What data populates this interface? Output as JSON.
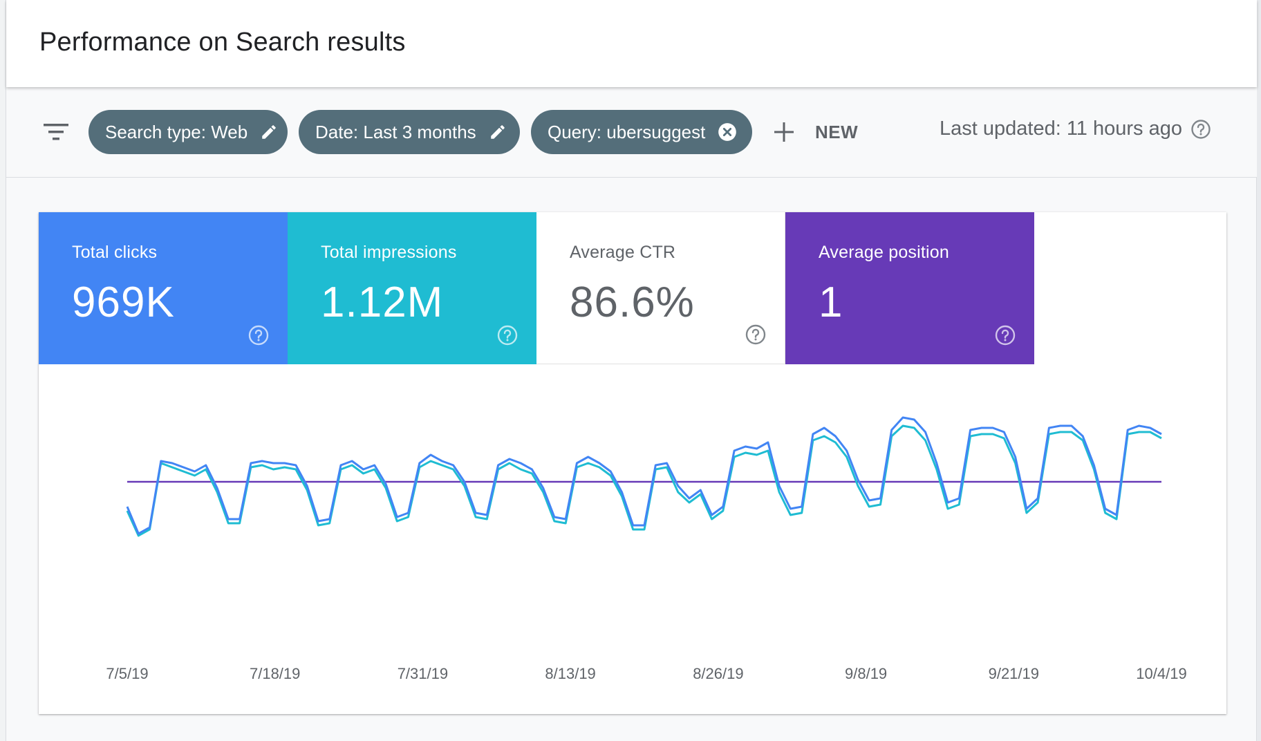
{
  "header": {
    "title": "Performance on Search results"
  },
  "filters": {
    "chips": [
      {
        "label": "Search type: Web",
        "icon": "edit-icon"
      },
      {
        "label": "Date: Last 3 months",
        "icon": "edit-icon"
      },
      {
        "label": "Query: ubersuggest",
        "icon": "clear-icon"
      }
    ],
    "new_label": "NEW",
    "last_updated": "Last updated: 11 hours ago"
  },
  "colors": {
    "clicks": "#4285f4",
    "impressions": "#1fbcd2",
    "ctr_bg": "#ffffff",
    "position": "#673ab7",
    "chip_bg": "#546e7a"
  },
  "metrics": [
    {
      "label": "Total clicks",
      "value": "969K",
      "color": "#4285f4",
      "selected": true
    },
    {
      "label": "Total impressions",
      "value": "1.12M",
      "color": "#1fbcd2",
      "selected": true
    },
    {
      "label": "Average CTR",
      "value": "86.6%",
      "color": "#ffffff",
      "selected": false
    },
    {
      "label": "Average position",
      "value": "1",
      "color": "#673ab7",
      "selected": true
    }
  ],
  "chart_data": {
    "type": "line",
    "x_tick_labels": [
      "7/5/19",
      "7/18/19",
      "7/31/19",
      "8/13/19",
      "8/26/19",
      "9/8/19",
      "9/21/19",
      "10/4/19"
    ],
    "y_axis": "hidden",
    "ylim": [
      0,
      100
    ],
    "series": [
      {
        "name": "Total clicks",
        "color": "#4285f4",
        "values": [
          38,
          25,
          28,
          60,
          59,
          57,
          55,
          58,
          47,
          32,
          32,
          59,
          60,
          59,
          59,
          58,
          48,
          31,
          32,
          58,
          60,
          56,
          58,
          49,
          33,
          35,
          59,
          63,
          60,
          58,
          50,
          35,
          34,
          58,
          61,
          59,
          56,
          47,
          33,
          32,
          59,
          62,
          59,
          55,
          45,
          29,
          29,
          58,
          59,
          48,
          42,
          46,
          34,
          38,
          65,
          67,
          66,
          69,
          48,
          37,
          38,
          73,
          76,
          72,
          65,
          51,
          41,
          42,
          75,
          81,
          80,
          74,
          59,
          40,
          42,
          75,
          76,
          76,
          74,
          62,
          37,
          42,
          76,
          77,
          77,
          72,
          58,
          37,
          34,
          75,
          77,
          76,
          73
        ]
      },
      {
        "name": "Total impressions",
        "color": "#1fbcd2",
        "values": [
          36,
          24,
          27,
          59,
          57,
          55,
          53,
          56,
          45,
          30,
          30,
          57,
          58,
          56,
          57,
          56,
          46,
          29,
          30,
          56,
          58,
          54,
          56,
          47,
          31,
          33,
          57,
          60,
          58,
          56,
          48,
          33,
          32,
          56,
          59,
          56,
          54,
          45,
          31,
          30,
          57,
          59,
          57,
          53,
          43,
          27,
          27,
          56,
          57,
          45,
          40,
          44,
          32,
          36,
          62,
          64,
          63,
          65,
          45,
          34,
          35,
          70,
          72,
          69,
          62,
          48,
          38,
          39,
          72,
          77,
          76,
          70,
          56,
          37,
          39,
          72,
          73,
          73,
          71,
          59,
          35,
          40,
          73,
          74,
          74,
          70,
          56,
          35,
          32,
          73,
          74,
          74,
          71
        ]
      },
      {
        "name": "Average position",
        "color": "#673ab7",
        "values": [
          50,
          50,
          50,
          50,
          50,
          50,
          50,
          50,
          50,
          50,
          50,
          50,
          50,
          50,
          50,
          50,
          50,
          50,
          50,
          50,
          50,
          50,
          50,
          50,
          50,
          50,
          50,
          50,
          50,
          50,
          50,
          50,
          50,
          50,
          50,
          50,
          50,
          50,
          50,
          50,
          50,
          50,
          50,
          50,
          50,
          50,
          50,
          50,
          50,
          50,
          50,
          50,
          50,
          50,
          50,
          50,
          50,
          50,
          50,
          50,
          50,
          50,
          50,
          50,
          50,
          50,
          50,
          50,
          50,
          50,
          50,
          50,
          50,
          50,
          50,
          50,
          50,
          50,
          50,
          50,
          50,
          50,
          50,
          50,
          50,
          50,
          50,
          50,
          50,
          50,
          50,
          50,
          50
        ]
      }
    ]
  }
}
